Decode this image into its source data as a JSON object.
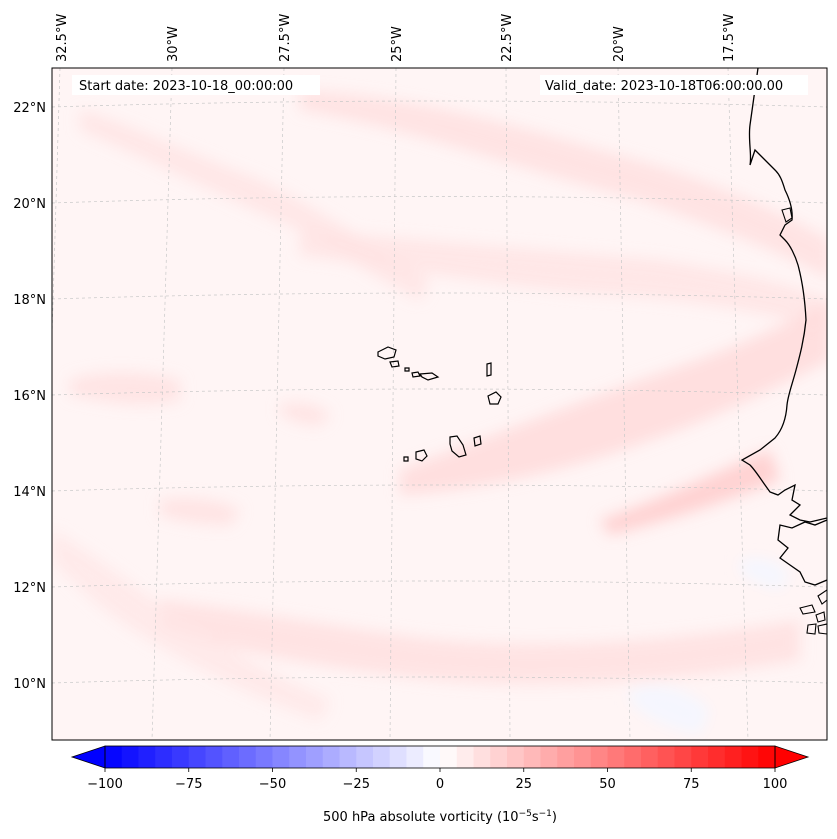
{
  "map": {
    "start_date": "Start date: 2023-10-18_00:00:00",
    "valid_date": "Valid_date: 2023-10-18T06:00:00.00",
    "lon_labels": [
      "32.5°W",
      "30°W",
      "27.5°W",
      "25°W",
      "22.5°W",
      "20°W",
      "17.5°W"
    ],
    "lat_labels": [
      "22°N",
      "20°N",
      "18°N",
      "16°N",
      "14°N",
      "12°N",
      "10°N"
    ]
  },
  "colorbar": {
    "label_prefix": "500 hPa absolute vorticity (10",
    "label_exp1": "−5",
    "label_mid": "s",
    "label_exp2": "−1",
    "label_suffix": ")",
    "tick_labels": [
      "−100",
      "−75",
      "−50",
      "−25",
      "0",
      "25",
      "50",
      "75",
      "100"
    ],
    "min": -100,
    "max": 100,
    "levels": 41,
    "colormap": "bwr",
    "extend": "both"
  }
}
